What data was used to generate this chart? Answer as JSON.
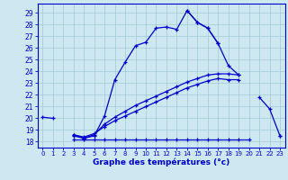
{
  "xlabel": "Graphe des températures (°c)",
  "background_color": "#cde8f0",
  "grid_color": "#a0c8d8",
  "line_color": "#0000cc",
  "ylim": [
    17.5,
    29.8
  ],
  "xlim": [
    -0.5,
    23.5
  ],
  "yticks": [
    18,
    19,
    20,
    21,
    22,
    23,
    24,
    25,
    26,
    27,
    28,
    29
  ],
  "xticks": [
    0,
    1,
    2,
    3,
    4,
    5,
    6,
    7,
    8,
    9,
    10,
    11,
    12,
    13,
    14,
    15,
    16,
    17,
    18,
    19,
    20,
    21,
    22,
    23
  ],
  "hours": [
    0,
    1,
    2,
    3,
    4,
    5,
    6,
    7,
    8,
    9,
    10,
    11,
    12,
    13,
    14,
    15,
    16,
    17,
    18,
    19,
    20,
    21,
    22,
    23
  ],
  "line_main": [
    20.1,
    20.0,
    null,
    18.6,
    18.3,
    18.5,
    20.2,
    23.3,
    24.8,
    26.2,
    26.5,
    27.7,
    27.8,
    27.6,
    29.2,
    28.2,
    27.7,
    26.4,
    null,
    null,
    null,
    null,
    null,
    null
  ],
  "line_diag1": [
    null,
    null,
    null,
    18.5,
    18.3,
    18.6,
    19.5,
    20.1,
    20.6,
    21.1,
    21.5,
    21.9,
    22.3,
    22.7,
    23.1,
    23.4,
    23.7,
    23.8,
    23.8,
    23.7,
    null,
    null,
    null,
    null
  ],
  "line_diag2": [
    null,
    null,
    null,
    18.6,
    18.4,
    18.7,
    19.3,
    19.8,
    20.2,
    20.6,
    21.0,
    21.4,
    21.8,
    22.2,
    22.6,
    22.9,
    23.2,
    23.4,
    23.3,
    23.3,
    null,
    null,
    null,
    null
  ],
  "line_right": [
    null,
    null,
    null,
    null,
    null,
    null,
    null,
    null,
    null,
    null,
    null,
    null,
    null,
    null,
    29.2,
    28.2,
    27.7,
    26.4,
    24.5,
    23.7,
    null,
    21.8,
    20.8,
    18.5
  ],
  "line_flat": [
    null,
    null,
    null,
    18.2,
    18.2,
    18.2,
    18.2,
    18.2,
    18.2,
    18.2,
    18.2,
    18.2,
    18.2,
    18.2,
    18.2,
    18.2,
    18.2,
    18.2,
    18.2,
    18.2,
    18.2,
    null,
    null,
    18.5
  ]
}
